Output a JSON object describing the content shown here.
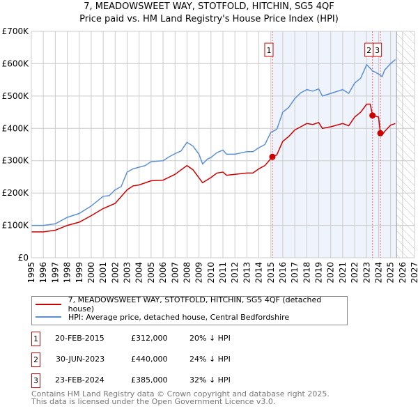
{
  "title_line1": "7, MEADOWSWEET WAY, STOTFOLD, HITCHIN, SG5 4QF",
  "title_line2": "Price paid vs. HM Land Registry's House Price Index (HPI)",
  "colors": {
    "property": "#cc0000",
    "hpi": "#5b8fd4",
    "shade": "#eef3fc"
  },
  "chart_data": {
    "type": "line",
    "title": "Price paid vs. HM Land Registry's House Price Index (HPI)",
    "xlim": [
      1995,
      2027
    ],
    "ylim": [
      0,
      700000
    ],
    "x_ticks": [
      "1995",
      "1996",
      "1997",
      "1998",
      "1999",
      "2000",
      "2001",
      "2002",
      "2003",
      "2004",
      "2005",
      "2006",
      "2007",
      "2008",
      "2009",
      "2010",
      "2011",
      "2012",
      "2013",
      "2014",
      "2015",
      "2016",
      "2017",
      "2018",
      "2019",
      "2020",
      "2021",
      "2022",
      "2023",
      "2024",
      "2025",
      "2026",
      "2027"
    ],
    "y_ticks": [
      {
        "v": 0,
        "label": "£0"
      },
      {
        "v": 100000,
        "label": "£100K"
      },
      {
        "v": 200000,
        "label": "£200K"
      },
      {
        "v": 300000,
        "label": "£300K"
      },
      {
        "v": 400000,
        "label": "£400K"
      },
      {
        "v": 500000,
        "label": "£500K"
      },
      {
        "v": 600000,
        "label": "£600K"
      },
      {
        "v": 700000,
        "label": "£700K"
      }
    ],
    "grid": true,
    "shaded_range": [
      2015.13,
      2025.5
    ],
    "forecast_hatch_from": 2025.5,
    "series": [
      {
        "name": "7, MEADOWSWEET WAY, STOTFOLD, HITCHIN, SG5 4QF (detached house)",
        "color": "#cc0000",
        "x": [
          1995,
          1996,
          1997,
          1998,
          1999,
          2000,
          2001,
          2002,
          2003,
          2003.5,
          2004,
          2005,
          2006,
          2007,
          2008,
          2008.5,
          2009.3,
          2010,
          2010.5,
          2011,
          2011.3,
          2012,
          2013,
          2013.5,
          2014,
          2014.5,
          2015.13,
          2015.5,
          2016,
          2016.5,
          2017,
          2017.5,
          2018,
          2018.5,
          2019,
          2019.3,
          2020,
          2021,
          2021.5,
          2022,
          2022.5,
          2023,
          2023.3,
          2023.5,
          2024,
          2024.15,
          2024.3,
          2024.5,
          2025,
          2025.4
        ],
        "y": [
          80000,
          80000,
          85000,
          100000,
          110000,
          130000,
          152000,
          168000,
          210000,
          222000,
          225000,
          238000,
          240000,
          258000,
          285000,
          272000,
          232000,
          248000,
          262000,
          265000,
          255000,
          258000,
          262000,
          262000,
          275000,
          285000,
          312000,
          318000,
          360000,
          375000,
          395000,
          405000,
          415000,
          412000,
          418000,
          400000,
          405000,
          415000,
          408000,
          435000,
          450000,
          475000,
          475000,
          440000,
          435000,
          385000,
          380000,
          390000,
          410000,
          415000
        ]
      },
      {
        "name": "HPI: Average price, detached house, Central Bedfordshire",
        "color": "#5b8fd4",
        "x": [
          1995,
          1996,
          1997,
          1998,
          1999,
          2000,
          2001,
          2001.5,
          2002,
          2002.5,
          2003,
          2003.5,
          2004,
          2004.5,
          2005,
          2006,
          2006.5,
          2007,
          2007.5,
          2008,
          2008.5,
          2009,
          2009.3,
          2009.7,
          2010,
          2010.5,
          2011,
          2011.3,
          2012,
          2013,
          2013.5,
          2014,
          2014.5,
          2015,
          2015.5,
          2016,
          2016.5,
          2017,
          2017.5,
          2018,
          2018.5,
          2019,
          2019.3,
          2020,
          2021,
          2021.5,
          2022,
          2022.5,
          2023,
          2023.5,
          2024,
          2024.3,
          2024.5,
          2025,
          2025.4
        ],
        "y": [
          100000,
          100000,
          105000,
          125000,
          137000,
          160000,
          190000,
          192000,
          210000,
          220000,
          265000,
          275000,
          280000,
          285000,
          297000,
          300000,
          312000,
          322000,
          330000,
          357000,
          345000,
          320000,
          290000,
          305000,
          310000,
          325000,
          333000,
          320000,
          320000,
          328000,
          328000,
          340000,
          350000,
          388000,
          397000,
          450000,
          465000,
          492000,
          510000,
          520000,
          515000,
          522000,
          500000,
          508000,
          520000,
          508000,
          540000,
          555000,
          597000,
          578000,
          568000,
          560000,
          580000,
          600000,
          613000
        ]
      }
    ],
    "sales": [
      {
        "label": "1",
        "date": "20-FEB-2015",
        "x": 2015.13,
        "price": "£312,000",
        "value": 312000,
        "hpi_diff": "20% ↓ HPI"
      },
      {
        "label": "2",
        "date": "30-JUN-2023",
        "x": 2023.49,
        "price": "£440,000",
        "value": 440000,
        "hpi_diff": "24% ↓ HPI"
      },
      {
        "label": "3",
        "date": "23-FEB-2024",
        "x": 2024.15,
        "price": "£385,000",
        "value": 385000,
        "hpi_diff": "32% ↓ HPI"
      }
    ]
  },
  "legend": {
    "property": "7, MEADOWSWEET WAY, STOTFOLD, HITCHIN, SG5 4QF (detached house)",
    "hpi": "HPI: Average price, detached house, Central Bedfordshire"
  },
  "footer": {
    "line1": "Contains HM Land Registry data © Crown copyright and database right 2025.",
    "line2": "This data is licensed under the Open Government Licence v3.0."
  }
}
